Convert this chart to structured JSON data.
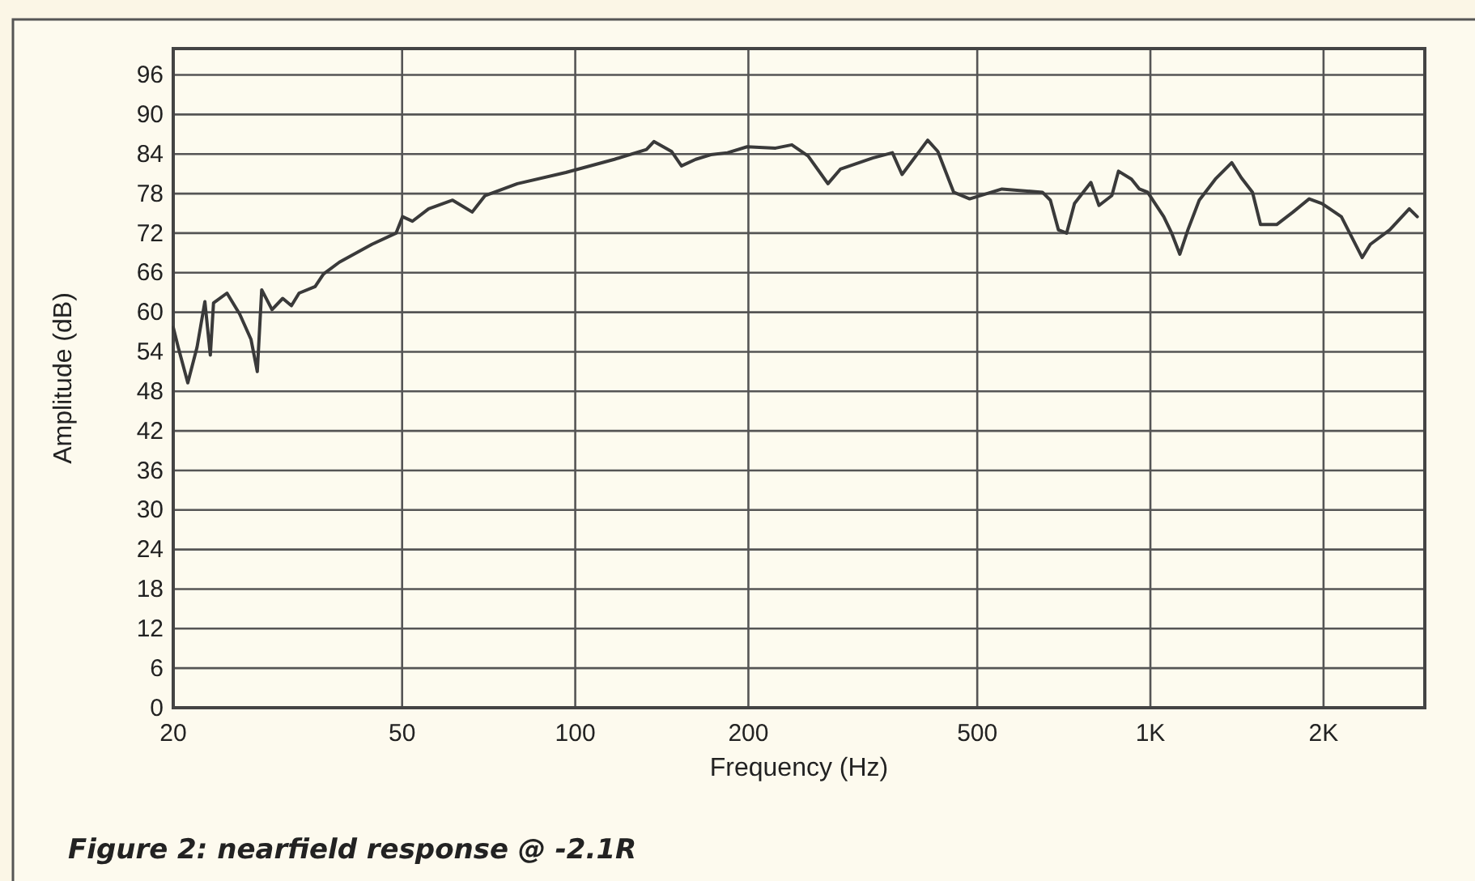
{
  "chart_data": {
    "type": "line",
    "xlabel": "Frequency (Hz)",
    "ylabel": "Amplitude (dB)",
    "log": "x",
    "grid": true,
    "marker": "none",
    "line_style": "solid",
    "xlim": [
      20,
      3000
    ],
    "xticks": [
      20,
      50,
      100,
      200,
      500,
      {
        "value": 1000,
        "label": "1K"
      },
      {
        "value": 2000,
        "label": "2K"
      }
    ],
    "ylim": [
      0,
      100
    ],
    "yticks": [
      0,
      6,
      12,
      18,
      24,
      30,
      36,
      42,
      48,
      54,
      60,
      66,
      72,
      78,
      84,
      90,
      96
    ],
    "annotations": [
      "Figure 2: nearfield response @ -2.1R"
    ],
    "series": [
      {
        "color": "#3a3a3a",
        "x": [
          20,
          20.4,
          21.2,
          22.0,
          22.7,
          23.2,
          23.5,
          24.8,
          26.1,
          27.3,
          28.0,
          28.5,
          29.7,
          31.0,
          32.1,
          33.1,
          35.3,
          36.5,
          38.9,
          44.3,
          48.8,
          50.1,
          52.1,
          55.6,
          61.2,
          66.2,
          69.7,
          79.3,
          96.3,
          117,
          133,
          137,
          147,
          153,
          162,
          172,
          184,
          199,
          223,
          238,
          254,
          275,
          289,
          329,
          356,
          370,
          410,
          427,
          455,
          485,
          552,
          649,
          670,
          692,
          715,
          738,
          788,
          814,
          857,
          880,
          927,
          957,
          989,
          1055,
          1089,
          1125,
          1162,
          1216,
          1297,
          1385,
          1439,
          1505,
          1554,
          1658,
          1770,
          1888,
          1987,
          2148,
          2335,
          2412,
          2607,
          2819,
          2911
        ],
        "values": [
          57.7,
          54.7,
          49.3,
          54.7,
          61.6,
          53.5,
          61.4,
          62.9,
          59.7,
          55.9,
          51,
          63.4,
          60.4,
          62.1,
          61,
          62.9,
          63.9,
          65.8,
          67.6,
          70.3,
          72,
          74.5,
          73.8,
          75.7,
          77,
          75.2,
          77.7,
          79.5,
          81.2,
          83.2,
          84.7,
          85.9,
          84.4,
          82.2,
          83.2,
          83.9,
          84.2,
          85.1,
          84.9,
          85.4,
          83.7,
          79.5,
          81.7,
          83.4,
          84.2,
          80.9,
          86.1,
          84.4,
          78.2,
          77.2,
          78.7,
          78.2,
          77,
          72.5,
          72,
          76.5,
          79.7,
          76.2,
          77.7,
          81.4,
          80.2,
          78.7,
          78.2,
          74.5,
          72,
          68.8,
          72.5,
          77,
          80.2,
          82.7,
          80.4,
          78.2,
          73.3,
          73.3,
          75.2,
          77.2,
          76.5,
          74.5,
          68.3,
          70.3,
          72.5,
          75.7,
          74.5
        ]
      }
    ]
  }
}
